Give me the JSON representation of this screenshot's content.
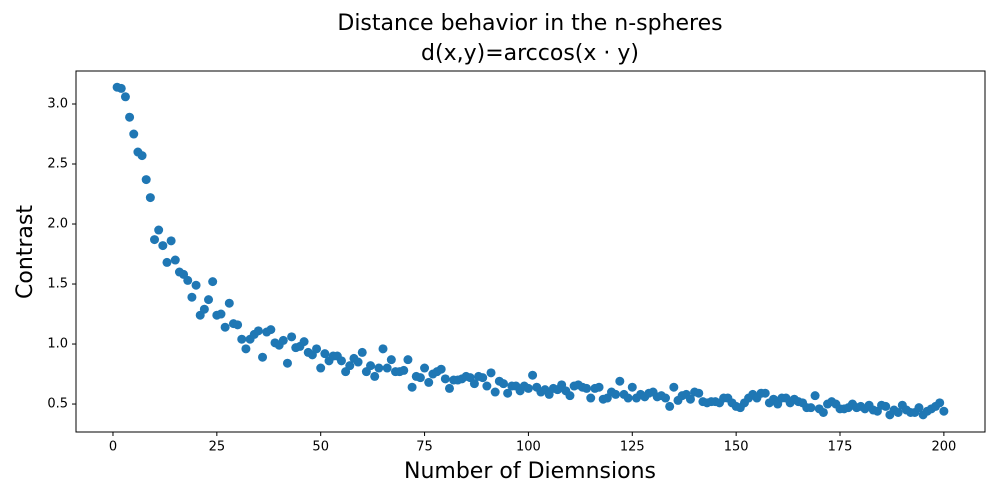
{
  "chart_data": {
    "type": "scatter",
    "title": "Distance behavior in the n-spheres",
    "subtitle": "d(x,y)=arccos(x · y)",
    "x_label": "Number of Diemnsions",
    "y_label": "Contrast",
    "color": "#1f77b4",
    "x": [
      1,
      2,
      3,
      4,
      5,
      6,
      7,
      8,
      9,
      10,
      11,
      12,
      13,
      14,
      15,
      16,
      17,
      18,
      19,
      20,
      21,
      22,
      23,
      24,
      25,
      26,
      27,
      28,
      29,
      30,
      31,
      32,
      33,
      34,
      35,
      36,
      37,
      38,
      39,
      40,
      41,
      42,
      43,
      44,
      45,
      46,
      47,
      48,
      49,
      50,
      51,
      52,
      53,
      54,
      55,
      56,
      57,
      58,
      59,
      60,
      61,
      62,
      63,
      64,
      65,
      66,
      67,
      68,
      69,
      70,
      71,
      72,
      73,
      74,
      75,
      76,
      77,
      78,
      79,
      80,
      81,
      82,
      83,
      84,
      85,
      86,
      87,
      88,
      89,
      90,
      91,
      92,
      93,
      94,
      95,
      96,
      97,
      98,
      99,
      100,
      101,
      102,
      103,
      104,
      105,
      106,
      107,
      108,
      109,
      110,
      111,
      112,
      113,
      114,
      115,
      116,
      117,
      118,
      119,
      120,
      121,
      122,
      123,
      124,
      125,
      126,
      127,
      128,
      129,
      130,
      131,
      132,
      133,
      134,
      135,
      136,
      137,
      138,
      139,
      140,
      141,
      142,
      143,
      144,
      145,
      146,
      147,
      148,
      149,
      150,
      151,
      152,
      153,
      154,
      155,
      156,
      157,
      158,
      159,
      160,
      161,
      162,
      163,
      164,
      165,
      166,
      167,
      168,
      169,
      170,
      171,
      172,
      173,
      174,
      175,
      176,
      177,
      178,
      179,
      180,
      181,
      182,
      183,
      184,
      185,
      186,
      187,
      188,
      189,
      190,
      191,
      192,
      193,
      194,
      195,
      196,
      197,
      198,
      199,
      200
    ],
    "values": [
      3.14,
      3.13,
      3.06,
      2.89,
      2.75,
      2.6,
      2.57,
      2.37,
      2.22,
      1.87,
      1.95,
      1.82,
      1.68,
      1.86,
      1.7,
      1.6,
      1.58,
      1.53,
      1.39,
      1.49,
      1.24,
      1.29,
      1.37,
      1.52,
      1.24,
      1.25,
      1.14,
      1.34,
      1.17,
      1.16,
      1.04,
      0.96,
      1.04,
      1.08,
      1.11,
      0.89,
      1.1,
      1.12,
      1.01,
      0.99,
      1.03,
      0.84,
      1.06,
      0.97,
      0.98,
      1.02,
      0.93,
      0.91,
      0.96,
      0.8,
      0.92,
      0.86,
      0.9,
      0.9,
      0.86,
      0.77,
      0.82,
      0.88,
      0.85,
      0.93,
      0.77,
      0.82,
      0.73,
      0.8,
      0.96,
      0.8,
      0.87,
      0.77,
      0.77,
      0.78,
      0.87,
      0.64,
      0.73,
      0.72,
      0.8,
      0.68,
      0.75,
      0.77,
      0.79,
      0.71,
      0.63,
      0.7,
      0.7,
      0.71,
      0.73,
      0.72,
      0.67,
      0.73,
      0.72,
      0.65,
      0.76,
      0.6,
      0.69,
      0.67,
      0.59,
      0.65,
      0.65,
      0.61,
      0.65,
      0.63,
      0.74,
      0.64,
      0.6,
      0.62,
      0.58,
      0.63,
      0.62,
      0.66,
      0.61,
      0.57,
      0.65,
      0.66,
      0.64,
      0.63,
      0.55,
      0.63,
      0.64,
      0.54,
      0.55,
      0.6,
      0.58,
      0.69,
      0.58,
      0.55,
      0.64,
      0.55,
      0.58,
      0.56,
      0.59,
      0.6,
      0.56,
      0.57,
      0.55,
      0.48,
      0.64,
      0.53,
      0.57,
      0.58,
      0.54,
      0.6,
      0.59,
      0.52,
      0.51,
      0.52,
      0.52,
      0.51,
      0.55,
      0.55,
      0.51,
      0.48,
      0.47,
      0.51,
      0.55,
      0.58,
      0.55,
      0.59,
      0.59,
      0.51,
      0.54,
      0.5,
      0.55,
      0.55,
      0.51,
      0.54,
      0.52,
      0.51,
      0.47,
      0.47,
      0.57,
      0.46,
      0.43,
      0.5,
      0.52,
      0.5,
      0.46,
      0.46,
      0.47,
      0.5,
      0.47,
      0.48,
      0.46,
      0.49,
      0.45,
      0.44,
      0.49,
      0.48,
      0.41,
      0.45,
      0.43,
      0.49,
      0.45,
      0.43,
      0.43,
      0.47,
      0.41,
      0.44,
      0.46,
      0.48,
      0.51,
      0.44
    ],
    "xlim": [
      -8.9,
      209.9
    ],
    "xticks": [
      0,
      25,
      50,
      75,
      100,
      125,
      150,
      175,
      200
    ],
    "ylim": [
      0.267,
      3.275
    ],
    "yticks": [
      {
        "value": 0.5,
        "label": "0.5"
      },
      {
        "value": 1.0,
        "label": "1.0"
      },
      {
        "value": 1.5,
        "label": "1.5"
      },
      {
        "value": 2.0,
        "label": "2.0"
      },
      {
        "value": 2.5,
        "label": "2.5"
      },
      {
        "value": 3.0,
        "label": "3.0"
      }
    ]
  }
}
